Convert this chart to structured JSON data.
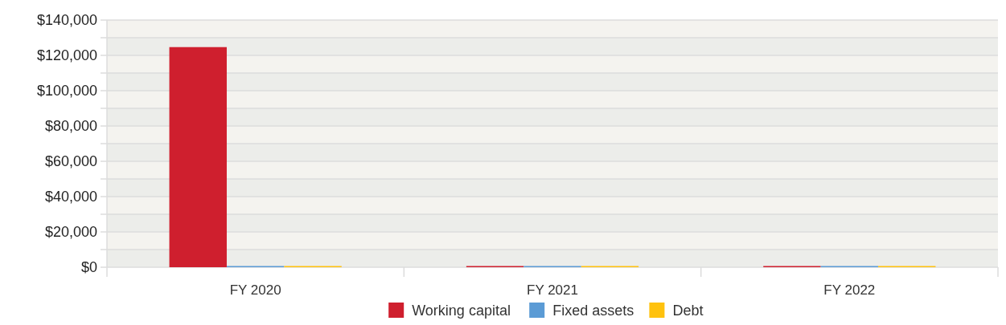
{
  "chart_data": {
    "type": "bar",
    "categories": [
      "FY 2020",
      "FY 2021",
      "FY 2022"
    ],
    "series": [
      {
        "name": "Working capital",
        "color": "#cf1f2e",
        "values": [
          124000,
          0,
          0
        ]
      },
      {
        "name": "Fixed assets",
        "color": "#5b9bd5",
        "values": [
          0,
          0,
          0
        ]
      },
      {
        "name": "Debt",
        "color": "#ffc20e",
        "values": [
          0,
          0,
          0
        ]
      }
    ],
    "ylim": [
      0,
      140000
    ],
    "yticks": [
      {
        "value": 0,
        "label": "$0"
      },
      {
        "value": 10000,
        "label": null
      },
      {
        "value": 20000,
        "label": "$20,000"
      },
      {
        "value": 30000,
        "label": null
      },
      {
        "value": 40000,
        "label": "$40,000"
      },
      {
        "value": 50000,
        "label": null
      },
      {
        "value": 60000,
        "label": "$60,000"
      },
      {
        "value": 70000,
        "label": null
      },
      {
        "value": 80000,
        "label": "$80,000"
      },
      {
        "value": 90000,
        "label": null
      },
      {
        "value": 100000,
        "label": "$100,000"
      },
      {
        "value": 110000,
        "label": null
      },
      {
        "value": 120000,
        "label": "$120,000"
      },
      {
        "value": 130000,
        "label": null
      },
      {
        "value": 140000,
        "label": "$140,000"
      }
    ],
    "grid": "y",
    "legend": "bottom"
  }
}
